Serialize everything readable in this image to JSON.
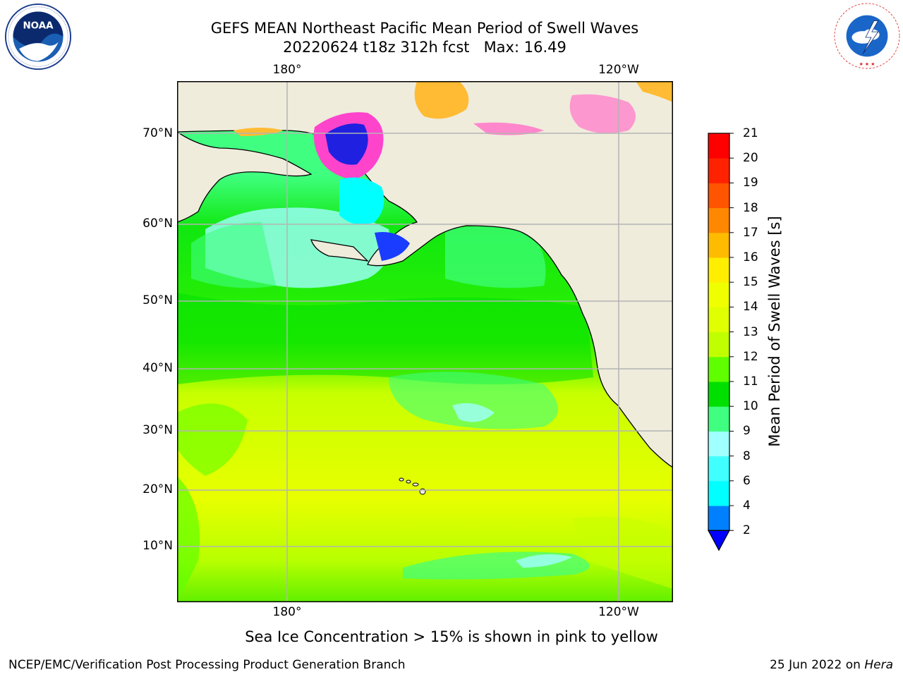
{
  "title": {
    "line1": "GEFS MEAN Northeast Pacific Mean Period of Swell Waves",
    "line2": "20220624 t18z 312h fcst   Max: 16.49"
  },
  "logos": {
    "left": {
      "icon": "noaa-logo",
      "text": "NOAA",
      "ring_text": "NATIONAL OCEANIC AND ATMOSPHERIC ADMINISTRATION · U.S. DEPARTMENT OF COMMERCE"
    },
    "right": {
      "icon": "nws-logo",
      "ring_text": "NATIONAL WEATHER SERVICE"
    }
  },
  "map": {
    "longitude_labels": [
      "180°",
      "120°W"
    ],
    "latitude_labels": [
      "70°N",
      "60°N",
      "50°N",
      "40°N",
      "30°N",
      "20°N",
      "10°N"
    ],
    "colors": {
      "land": "#efecdc",
      "grid": "#b4b4b4"
    }
  },
  "colorbar": {
    "title": "Mean Period of Swell Waves [s]",
    "levels": [
      "2",
      "4",
      "6",
      "8",
      "9",
      "10",
      "11",
      "12",
      "13",
      "14",
      "15",
      "16",
      "17",
      "18",
      "19",
      "20",
      "21"
    ],
    "colors": [
      "#0000ff",
      "#0080ff",
      "#00ffff",
      "#40ffff",
      "#a0ffff",
      "#40ff80",
      "#00e000",
      "#60ff00",
      "#c0ff00",
      "#e0ff00",
      "#f0ff00",
      "#ffee00",
      "#ffbb00",
      "#ff8800",
      "#ff5500",
      "#ff2200",
      "#ff0000"
    ],
    "extend_color": "#0000ff"
  },
  "footnote": "Sea Ice Concentration > 15% is shown in pink to yellow",
  "credit": "NCEP/EMC/Verification Post Processing Product Generation Branch",
  "date": {
    "prefix": "25 Jun 2022 on ",
    "host": "Hera"
  }
}
